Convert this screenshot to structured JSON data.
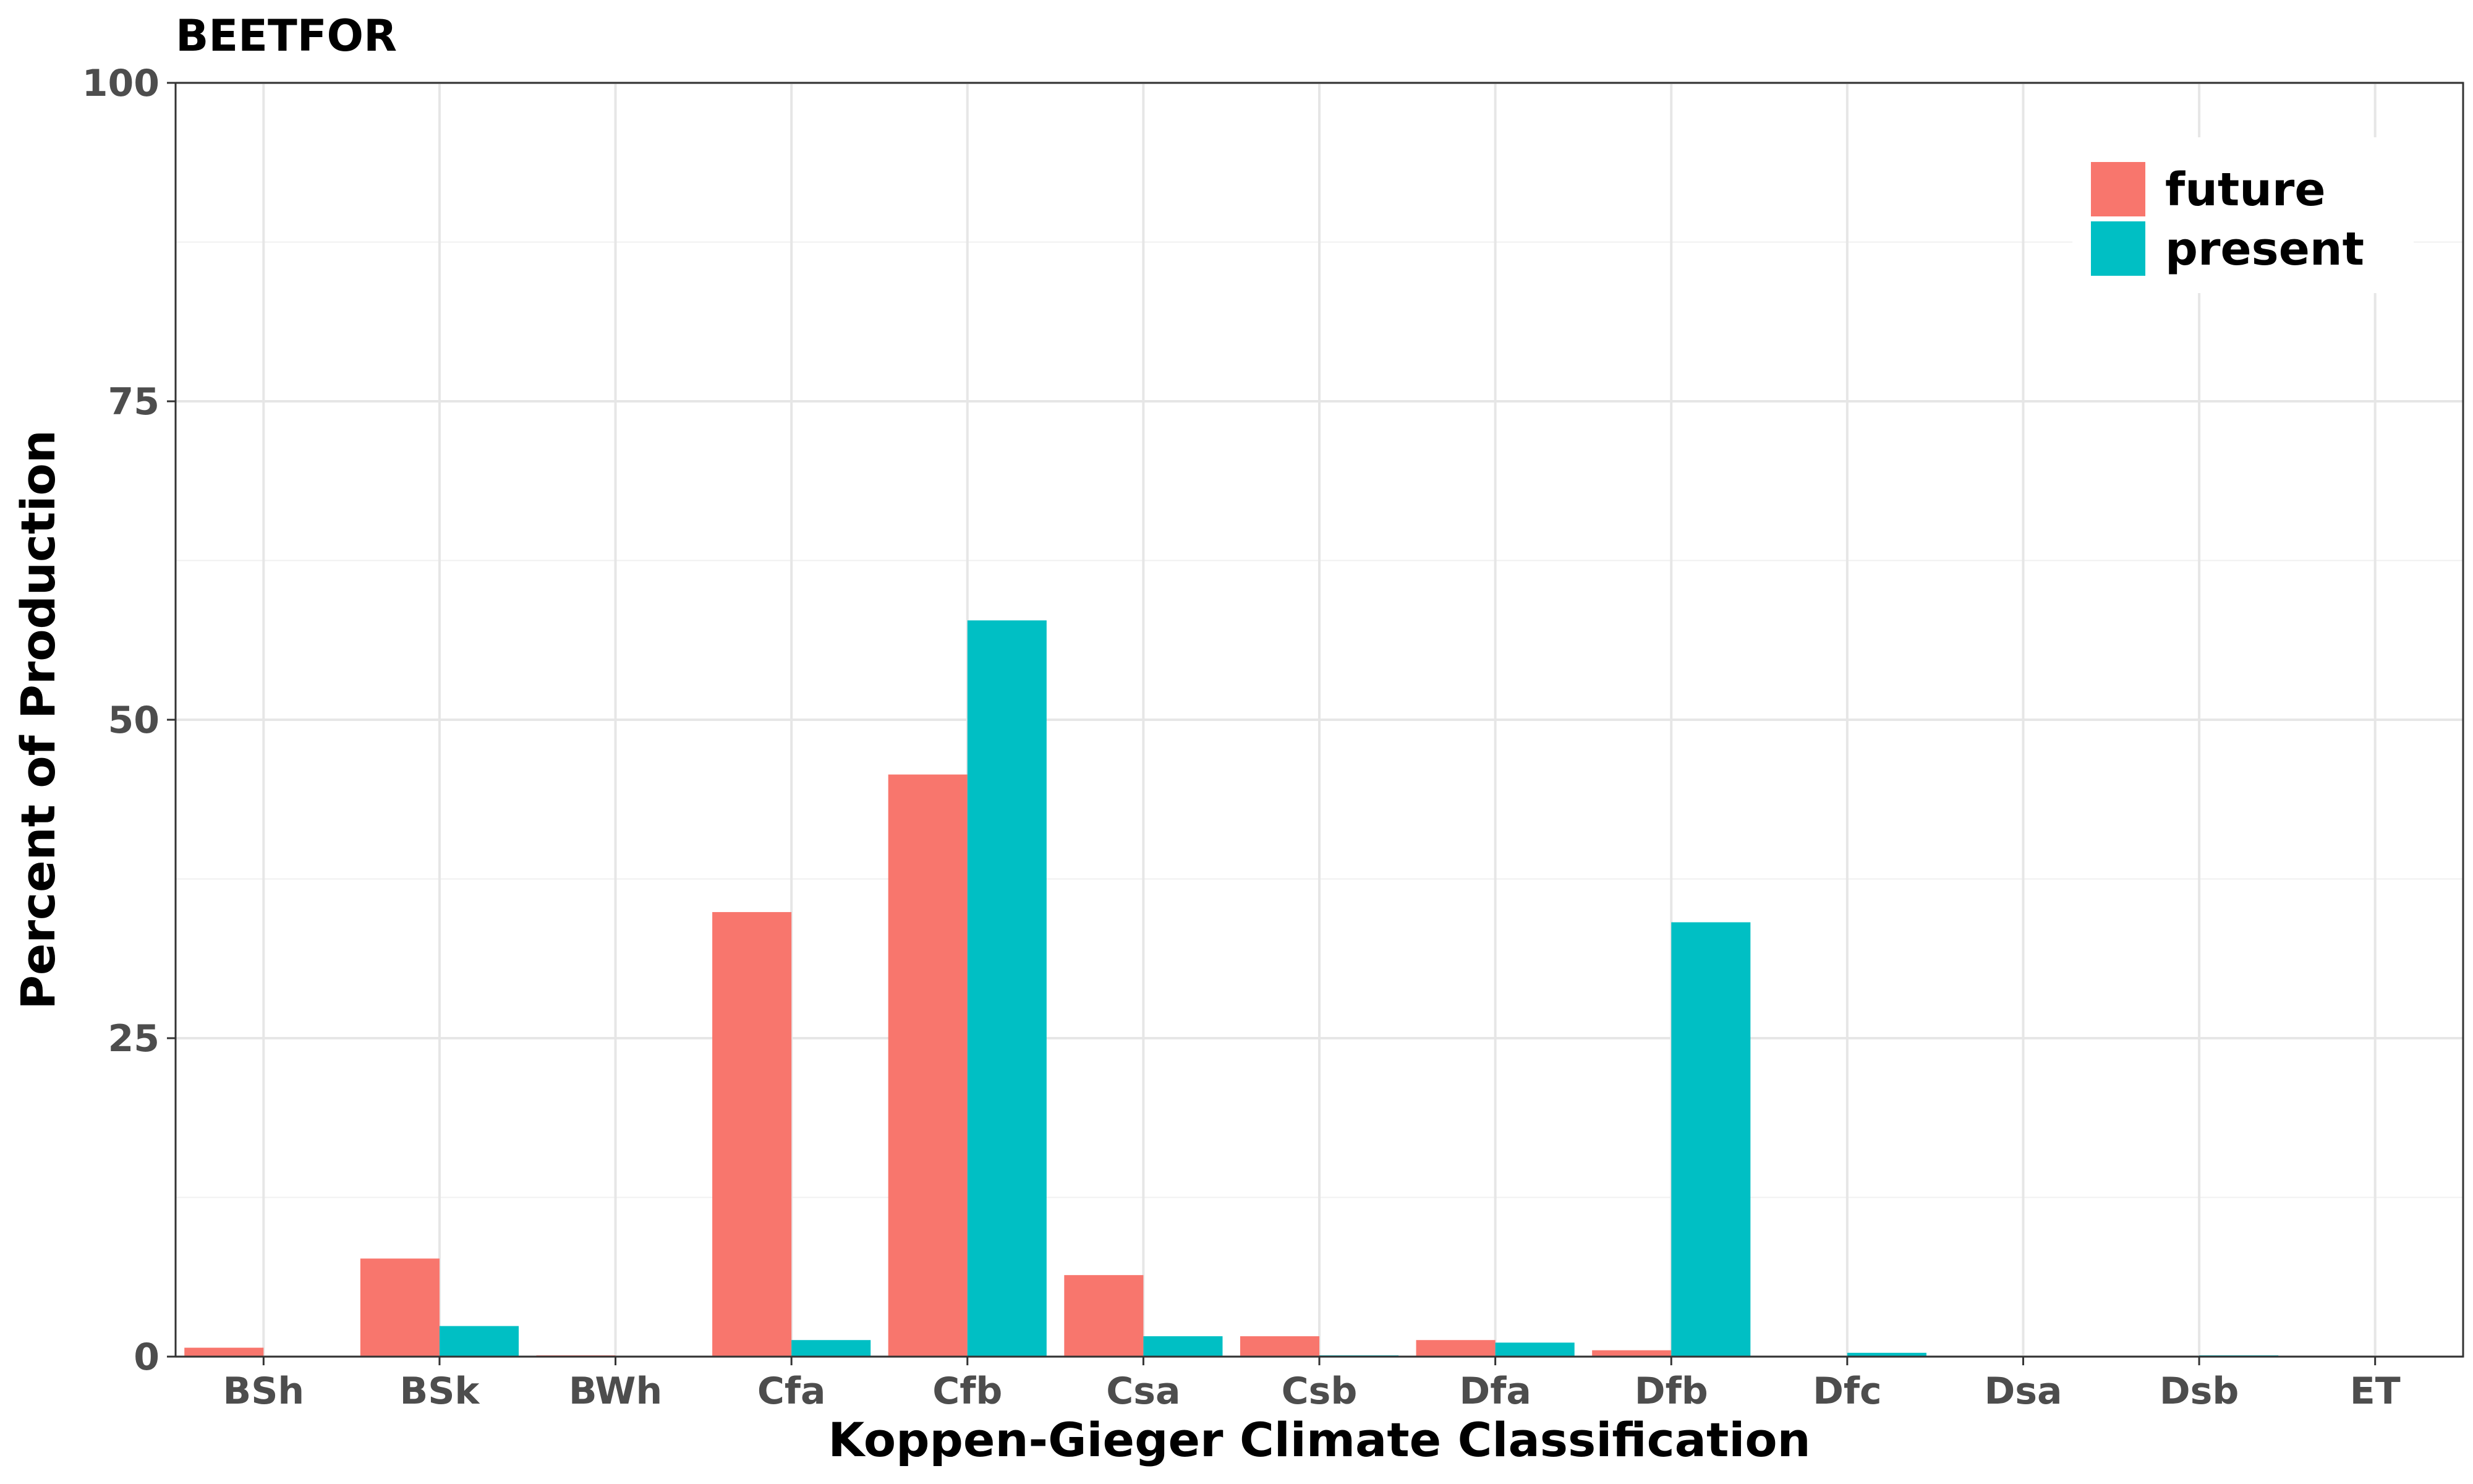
{
  "chart_data": {
    "type": "bar",
    "title": "BEETFOR",
    "xlabel": "Koppen-Gieger Climate Classification",
    "ylabel": "Percent of Production",
    "ylim": [
      0,
      100
    ],
    "yticks": [
      0,
      25,
      50,
      75,
      100
    ],
    "grid": true,
    "legend_position": "top-right",
    "categories": [
      "BSh",
      "BSk",
      "BWh",
      "Cfa",
      "Cfb",
      "Csa",
      "Csb",
      "Dfa",
      "Dfb",
      "Dfc",
      "Dsa",
      "Dsb",
      "ET"
    ],
    "series": [
      {
        "name": "future",
        "color": "#F8766D",
        "values": [
          0.7,
          7.7,
          0.1,
          34.9,
          45.7,
          6.4,
          1.6,
          1.3,
          0.5,
          0.0,
          0.0,
          0.0,
          0.0
        ]
      },
      {
        "name": "present",
        "color": "#00BFC4",
        "values": [
          0.0,
          2.4,
          0.0,
          1.3,
          57.8,
          1.6,
          0.1,
          1.1,
          34.1,
          0.3,
          0.0,
          0.1,
          0.0
        ]
      }
    ]
  }
}
